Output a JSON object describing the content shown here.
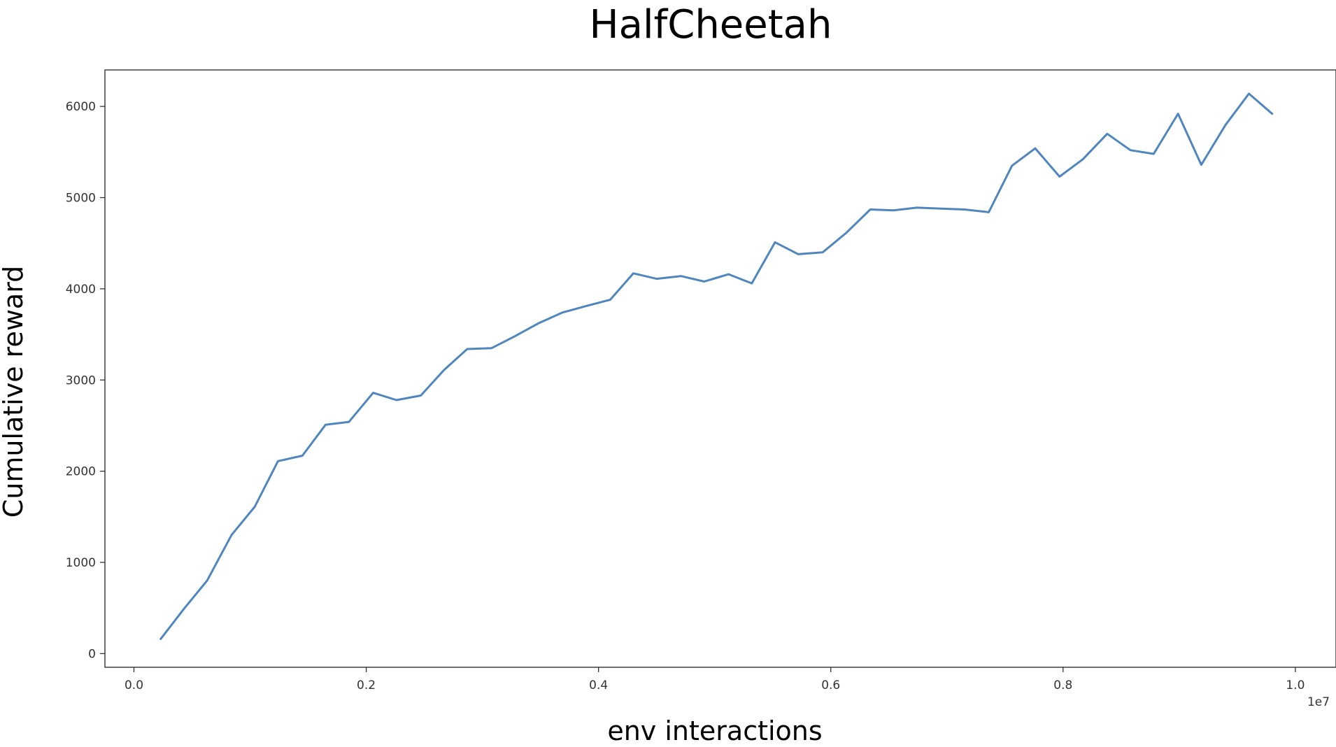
{
  "chart_data": {
    "type": "line",
    "title": "HalfCheetah",
    "xlabel": "env interactions",
    "ylabel": "Cumulative reward",
    "x_offset_label": "1e7",
    "xlim": [
      -0.025,
      1.035
    ],
    "ylim": [
      -150,
      6400
    ],
    "x_ticks": [
      0.0,
      0.2,
      0.4,
      0.6,
      0.8,
      1.0
    ],
    "x_tick_labels": [
      "0.0",
      "0.2",
      "0.4",
      "0.6",
      "0.8",
      "1.0"
    ],
    "y_ticks": [
      0,
      1000,
      2000,
      3000,
      4000,
      5000,
      6000
    ],
    "y_tick_labels": [
      "0",
      "1000",
      "2000",
      "3000",
      "4000",
      "5000",
      "6000"
    ],
    "grid": false,
    "colors": {
      "line": "#4f86be"
    },
    "series": [
      {
        "x": [
          0.023,
          0.043,
          0.063,
          0.084,
          0.104,
          0.124,
          0.145,
          0.165,
          0.185,
          0.206,
          0.226,
          0.247,
          0.267,
          0.287,
          0.308,
          0.328,
          0.348,
          0.369,
          0.389,
          0.41,
          0.43,
          0.45,
          0.471,
          0.491,
          0.512,
          0.532,
          0.552,
          0.572,
          0.593,
          0.613,
          0.634,
          0.654,
          0.674,
          0.695,
          0.715,
          0.736,
          0.756,
          0.776,
          0.797,
          0.817,
          0.838,
          0.858,
          0.878,
          0.899,
          0.919,
          0.94,
          0.96,
          0.98
        ],
        "y": [
          160,
          490,
          800,
          1300,
          1610,
          2110,
          2170,
          2510,
          2540,
          2860,
          2780,
          2830,
          3110,
          3340,
          3350,
          3480,
          3620,
          3740,
          3810,
          3880,
          4170,
          4110,
          4140,
          4080,
          4160,
          4060,
          4510,
          4380,
          4400,
          4610,
          4870,
          4860,
          4890,
          4880,
          4870,
          4840,
          5350,
          5540,
          5230,
          5420,
          5700,
          5520,
          5480,
          5920,
          5360,
          5800,
          6140,
          5920
        ]
      }
    ]
  }
}
